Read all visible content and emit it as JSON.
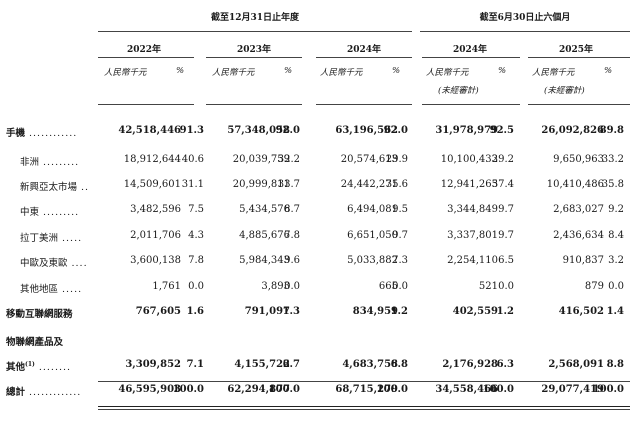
{
  "header": {
    "group_full_year": "截至12月31日止年度",
    "group_half_year": "截至6月30日止六個月",
    "years": [
      "2022年",
      "2023年",
      "2024年",
      "2024年",
      "2025年"
    ],
    "unit_rmb": "人民幣千元",
    "unit_pct": "%",
    "unaudited": "(未經審計)"
  },
  "rows": [
    {
      "label": "手機",
      "dots": "............",
      "bold": true,
      "values": [
        "42,518,446",
        "91.3",
        "57,348,058",
        "92.0",
        "63,196,562",
        "92.0",
        "31,978,979",
        "92.5",
        "26,092,826",
        "89.8"
      ]
    },
    {
      "label": "非洲",
      "dots": ".........",
      "bold": false,
      "values": [
        "18,912,644",
        "40.6",
        "20,039,759",
        "32.2",
        "20,574,613",
        "29.9",
        "10,100,433",
        "29.2",
        "9,650,963",
        "33.2"
      ]
    },
    {
      "label": "新興亞太市場",
      "dots": "..",
      "bold": false,
      "values": [
        "14,509,601",
        "31.1",
        "20,999,811",
        "33.7",
        "24,442,271",
        "35.6",
        "12,941,265",
        "37.4",
        "10,410,486",
        "35.8"
      ]
    },
    {
      "label": "中東",
      "dots": ".........",
      "bold": false,
      "values": [
        "3,482,596",
        "7.5",
        "5,434,576",
        "8.7",
        "6,494,081",
        "9.5",
        "3,344,849",
        "9.7",
        "2,683,027",
        "9.2"
      ]
    },
    {
      "label": "拉丁美洲",
      "dots": ".....",
      "bold": false,
      "values": [
        "2,011,706",
        "4.3",
        "4,885,676",
        "7.8",
        "6,651,050",
        "9.7",
        "3,337,801",
        "9.7",
        "2,436,634",
        "8.4"
      ]
    },
    {
      "label": "中歐及東歐",
      "dots": "....",
      "bold": false,
      "values": [
        "3,600,138",
        "7.8",
        "5,984,343",
        "9.6",
        "5,033,882",
        "7.3",
        "2,254,110",
        "6.5",
        "910,837",
        "3.2"
      ]
    },
    {
      "label": "其他地區",
      "dots": ".....",
      "bold": false,
      "values": [
        "1,761",
        "0.0",
        "3,893",
        "0.0",
        "665",
        "0.0",
        "521",
        "0.0",
        "879",
        "0.0"
      ]
    },
    {
      "label": "移動互聯網服務",
      "dots": "",
      "bold": true,
      "values": [
        "767,605",
        "1.6",
        "791,097",
        "1.3",
        "834,959",
        "1.2",
        "402,559",
        "1.2",
        "416,502",
        "1.4"
      ]
    },
    {
      "label": "物聯網產品及",
      "dots": "",
      "bold": true,
      "values": []
    },
    {
      "label": "其他",
      "sup": "(1)",
      "dots": "........",
      "bold": true,
      "values": [
        "3,309,852",
        "7.1",
        "4,155,722",
        "6.7",
        "4,683,758",
        "6.8",
        "2,176,928",
        "6.3",
        "2,568,091",
        "8.8"
      ]
    },
    {
      "label": "總計",
      "dots": ".............",
      "bold": true,
      "values": [
        "46,595,903",
        "100.0",
        "62,294,877",
        "100.0",
        "68,715,279",
        "100.0",
        "34,558,466",
        "100.0",
        "29,077,419",
        "100.0"
      ]
    }
  ]
}
